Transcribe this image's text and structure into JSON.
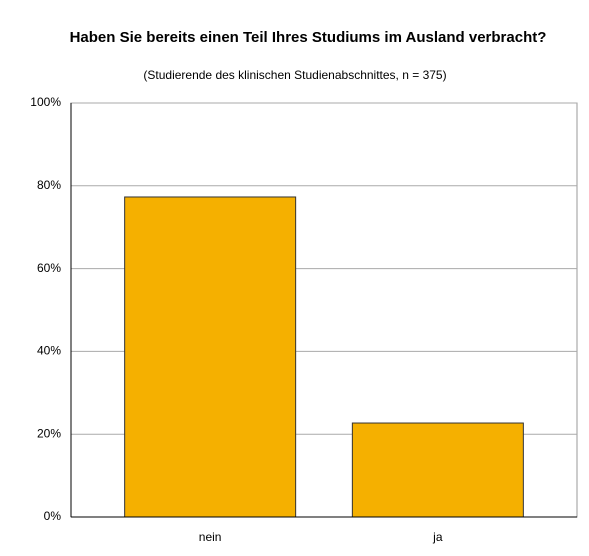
{
  "chart_data": {
    "type": "bar",
    "title": "Haben Sie bereits einen Teil Ihres Studiums im Ausland verbracht?",
    "subtitle": "(Studierende des klinischen Studienabschnittes, n = 375)",
    "categories": [
      "nein",
      "ja"
    ],
    "values": [
      77.3,
      22.7
    ],
    "color": "#f5b000",
    "ylim": [
      0,
      100
    ],
    "yticks": [
      {
        "value": 0,
        "label": "0%"
      },
      {
        "value": 20,
        "label": "20%"
      },
      {
        "value": 40,
        "label": "40%"
      },
      {
        "value": 60,
        "label": "60%"
      },
      {
        "value": 80,
        "label": "80%"
      },
      {
        "value": 100,
        "label": "100%"
      }
    ],
    "grid": true
  }
}
